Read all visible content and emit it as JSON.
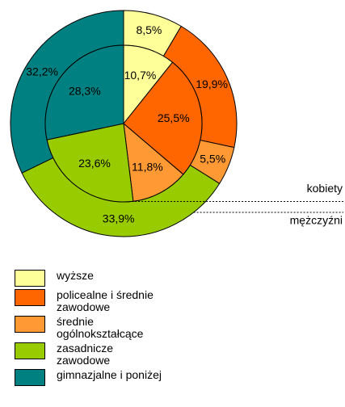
{
  "chart_data": {
    "type": "donut",
    "categories": [
      "wyższe",
      "policealne i średnie\nzawodowe",
      "średnie\nogólnokształcące",
      "zasadnicze\nzawodowe",
      "gimnazjalne i poniżej"
    ],
    "colors": [
      "#ffff99",
      "#ff6600",
      "#ff9933",
      "#99cc00",
      "#008080"
    ],
    "series": [
      {
        "name": "kobiety",
        "values": [
          10.7,
          25.5,
          11.8,
          23.6,
          28.3
        ],
        "value_labels": [
          "10,7%",
          "25,5%",
          "11,8%",
          "23,6%",
          "28,3%"
        ]
      },
      {
        "name": "mężczyźni",
        "values": [
          8.5,
          19.9,
          5.5,
          33.9,
          32.2
        ],
        "value_labels": [
          "8,5%",
          "19,9%",
          "5,5%",
          "33,9%",
          "32,2%"
        ]
      }
    ]
  }
}
